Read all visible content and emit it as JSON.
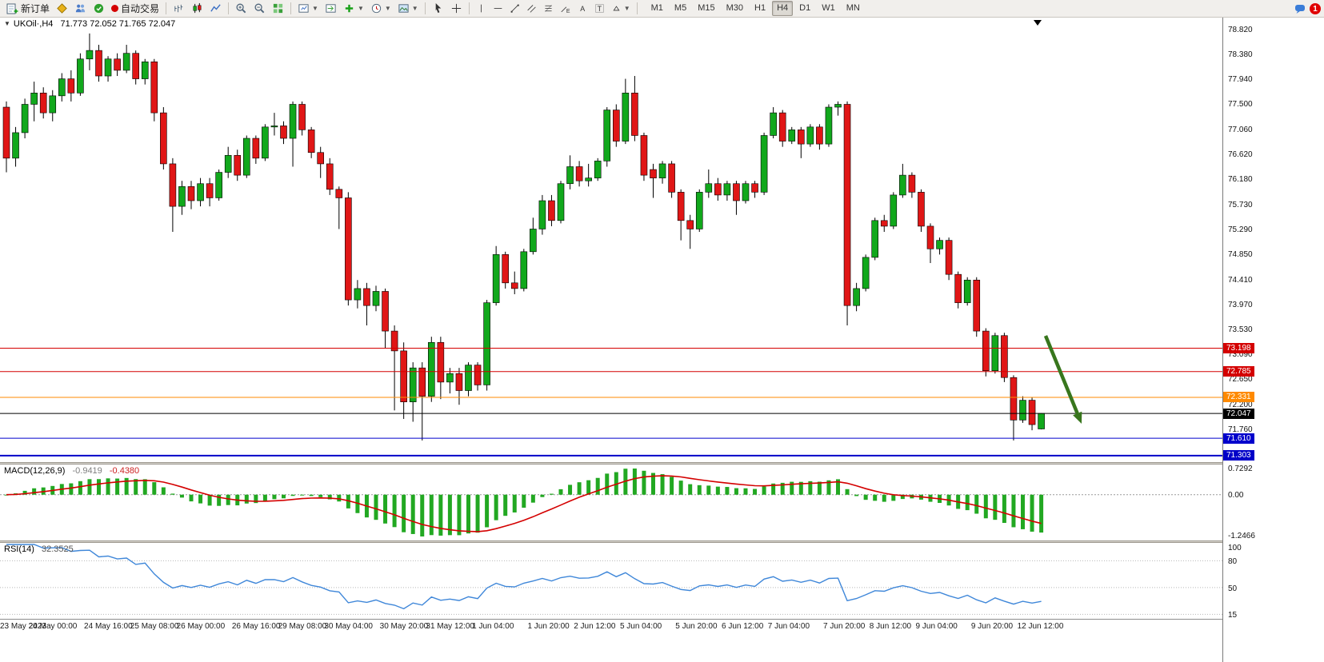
{
  "toolbar": {
    "new_order_label": "新订单",
    "autotrading_label": "自动交易",
    "notification_badge": "1",
    "timeframes": {
      "items": [
        "M1",
        "M5",
        "M15",
        "M30",
        "H1",
        "H4",
        "D1",
        "W1",
        "MN"
      ],
      "active": "H4"
    }
  },
  "chart": {
    "symbol_label": "UKOil·,H4",
    "ohlc_text": "71.773 72.052 71.765 72.047",
    "open": "71.773",
    "high": "72.052",
    "low": "71.765",
    "close": "72.047"
  },
  "price_axis": {
    "ticks": [
      "78.820",
      "78.380",
      "77.940",
      "77.500",
      "77.060",
      "76.620",
      "76.180",
      "75.730",
      "75.290",
      "74.850",
      "74.410",
      "73.970",
      "73.530",
      "73.090",
      "72.650",
      "72.200",
      "71.760"
    ]
  },
  "hlines": [
    {
      "price": 73.198,
      "label": "73.198",
      "color": "#d40000",
      "width": 1
    },
    {
      "price": 72.785,
      "label": "72.785",
      "color": "#d40000",
      "width": 1
    },
    {
      "price": 72.331,
      "label": "72.331",
      "color": "#ff8a00",
      "width": 1
    },
    {
      "price": 71.61,
      "label": "71.610",
      "color": "#0000cc",
      "width": 1
    },
    {
      "price": 71.303,
      "label": "71.303",
      "color": "#0000c8",
      "width": 2
    }
  ],
  "current_price": {
    "value": 72.047,
    "label": "72.047",
    "color": "#000000"
  },
  "macd": {
    "title_text": "MACD(12,26,9)",
    "value_main": "-0.9419",
    "value_signal": "-0.4380",
    "axis": [
      "0.7292",
      "0.00",
      "-1.2466"
    ],
    "histogram_color": "#22a822",
    "signal_color": "#d40000"
  },
  "rsi": {
    "title_text": "RSI(14)",
    "value": "32.3525",
    "axis": [
      "100",
      "80",
      "50",
      "15"
    ],
    "levels": [
      80,
      50,
      20
    ],
    "line_color": "#3f87d9"
  },
  "time_axis": {
    "labels": [
      "23 May 2023",
      "24 May 00:00",
      "24 May 16:00",
      "25 May 08:00",
      "26 May 00:00",
      "26 May 16:00",
      "29 May 08:00",
      "30 May 04:00",
      "30 May 20:00",
      "31 May 12:00",
      "1 Jun 04:00",
      "1 Jun 20:00",
      "2 Jun 12:00",
      "5 Jun 04:00",
      "5 Jun 20:00",
      "6 Jun 12:00",
      "7 Jun 04:00",
      "7 Jun 20:00",
      "8 Jun 12:00",
      "9 Jun 04:00",
      "9 Jun 20:00",
      "12 Jun 12:00"
    ]
  },
  "annotation": {
    "arrow_color": "#38761d"
  },
  "chart_data": {
    "type": "candlestick",
    "symbol": "UKOil",
    "timeframe": "H4",
    "up_color": "#11a81c",
    "down_color": "#e01616",
    "price_range": [
      71.19,
      79.03
    ],
    "candles": [
      [
        77.45,
        77.55,
        76.3,
        76.55
      ],
      [
        76.55,
        77.1,
        76.4,
        77.0
      ],
      [
        77.0,
        77.6,
        76.9,
        77.5
      ],
      [
        77.5,
        77.9,
        77.2,
        77.7
      ],
      [
        77.7,
        77.8,
        77.25,
        77.35
      ],
      [
        77.35,
        77.75,
        77.2,
        77.65
      ],
      [
        77.65,
        78.05,
        77.55,
        77.95
      ],
      [
        77.95,
        78.1,
        77.55,
        77.7
      ],
      [
        77.7,
        78.4,
        77.65,
        78.3
      ],
      [
        78.3,
        78.75,
        78.1,
        78.45
      ],
      [
        78.45,
        78.55,
        77.9,
        78.0
      ],
      [
        78.0,
        78.35,
        77.9,
        78.3
      ],
      [
        78.3,
        78.4,
        78.0,
        78.1
      ],
      [
        78.1,
        78.55,
        78.05,
        78.4
      ],
      [
        78.4,
        78.45,
        77.85,
        77.95
      ],
      [
        77.95,
        78.3,
        77.85,
        78.25
      ],
      [
        78.25,
        78.3,
        77.2,
        77.35
      ],
      [
        77.35,
        77.45,
        76.35,
        76.45
      ],
      [
        76.45,
        76.55,
        75.25,
        75.7
      ],
      [
        75.7,
        76.15,
        75.55,
        76.05
      ],
      [
        76.05,
        76.15,
        75.65,
        75.8
      ],
      [
        75.8,
        76.2,
        75.7,
        76.1
      ],
      [
        76.1,
        76.2,
        75.7,
        75.85
      ],
      [
        75.85,
        76.35,
        75.8,
        76.3
      ],
      [
        76.3,
        76.75,
        76.2,
        76.6
      ],
      [
        76.6,
        76.7,
        76.15,
        76.25
      ],
      [
        76.25,
        76.95,
        76.2,
        76.9
      ],
      [
        76.9,
        76.95,
        76.45,
        76.55
      ],
      [
        76.55,
        77.15,
        76.5,
        77.1
      ],
      [
        77.1,
        77.35,
        76.95,
        77.12
      ],
      [
        77.12,
        77.2,
        76.8,
        76.9
      ],
      [
        76.9,
        77.55,
        76.4,
        77.5
      ],
      [
        77.5,
        77.55,
        76.95,
        77.05
      ],
      [
        77.05,
        77.1,
        76.55,
        76.65
      ],
      [
        76.65,
        76.75,
        76.2,
        76.45
      ],
      [
        76.45,
        76.55,
        75.9,
        76.0
      ],
      [
        76.0,
        76.05,
        75.3,
        75.85
      ],
      [
        75.85,
        75.95,
        73.95,
        74.05
      ],
      [
        74.05,
        74.4,
        73.9,
        74.25
      ],
      [
        74.25,
        74.35,
        73.6,
        73.95
      ],
      [
        73.95,
        74.3,
        73.85,
        74.2
      ],
      [
        74.2,
        74.25,
        73.2,
        73.5
      ],
      [
        73.5,
        73.6,
        72.1,
        73.15
      ],
      [
        73.15,
        73.3,
        71.95,
        72.25
      ],
      [
        72.25,
        72.95,
        71.9,
        72.85
      ],
      [
        72.85,
        72.95,
        71.57,
        72.35
      ],
      [
        72.35,
        73.4,
        72.25,
        73.3
      ],
      [
        73.3,
        73.4,
        72.3,
        72.6
      ],
      [
        72.6,
        72.85,
        72.4,
        72.75
      ],
      [
        72.75,
        72.85,
        72.2,
        72.45
      ],
      [
        72.45,
        72.95,
        72.35,
        72.9
      ],
      [
        72.9,
        72.95,
        72.45,
        72.55
      ],
      [
        72.55,
        74.05,
        72.45,
        74.0
      ],
      [
        74.0,
        75.0,
        73.95,
        74.85
      ],
      [
        74.85,
        74.9,
        74.25,
        74.35
      ],
      [
        74.35,
        74.55,
        74.15,
        74.25
      ],
      [
        74.25,
        74.95,
        74.2,
        74.9
      ],
      [
        74.9,
        75.5,
        74.85,
        75.3
      ],
      [
        75.3,
        75.9,
        75.2,
        75.8
      ],
      [
        75.8,
        75.9,
        75.35,
        75.45
      ],
      [
        75.45,
        76.15,
        75.4,
        76.1
      ],
      [
        76.1,
        76.6,
        76.0,
        76.4
      ],
      [
        76.4,
        76.5,
        76.05,
        76.15
      ],
      [
        76.15,
        76.45,
        76.05,
        76.2
      ],
      [
        76.2,
        76.55,
        76.15,
        76.5
      ],
      [
        76.5,
        77.45,
        76.4,
        77.4
      ],
      [
        77.4,
        77.5,
        76.75,
        76.85
      ],
      [
        76.85,
        77.95,
        76.8,
        77.7
      ],
      [
        77.7,
        78.0,
        76.85,
        76.95
      ],
      [
        76.95,
        77.0,
        76.15,
        76.25
      ],
      [
        76.35,
        76.45,
        75.85,
        76.2
      ],
      [
        76.2,
        76.5,
        76.1,
        76.45
      ],
      [
        76.45,
        76.5,
        75.85,
        75.95
      ],
      [
        75.95,
        76.0,
        75.1,
        75.45
      ],
      [
        75.45,
        75.55,
        74.95,
        75.3
      ],
      [
        75.3,
        76.0,
        75.25,
        75.95
      ],
      [
        75.95,
        76.35,
        75.85,
        76.1
      ],
      [
        76.1,
        76.2,
        75.8,
        75.9
      ],
      [
        75.9,
        76.15,
        75.8,
        76.1
      ],
      [
        76.1,
        76.15,
        75.55,
        75.8
      ],
      [
        75.8,
        76.15,
        75.75,
        76.1
      ],
      [
        76.1,
        76.15,
        75.85,
        75.95
      ],
      [
        75.95,
        77.0,
        75.9,
        76.95
      ],
      [
        76.95,
        77.45,
        76.9,
        77.35
      ],
      [
        77.35,
        77.4,
        76.75,
        76.85
      ],
      [
        76.85,
        77.1,
        76.8,
        77.05
      ],
      [
        77.05,
        77.1,
        76.55,
        76.8
      ],
      [
        76.8,
        77.15,
        76.75,
        77.1
      ],
      [
        77.1,
        77.15,
        76.7,
        76.8
      ],
      [
        76.8,
        77.5,
        76.75,
        77.45
      ],
      [
        77.45,
        77.55,
        77.3,
        77.5
      ],
      [
        77.5,
        77.55,
        73.6,
        73.95
      ],
      [
        73.95,
        74.35,
        73.85,
        74.25
      ],
      [
        74.25,
        74.85,
        74.2,
        74.8
      ],
      [
        74.8,
        75.5,
        74.75,
        75.45
      ],
      [
        75.45,
        75.55,
        75.25,
        75.35
      ],
      [
        75.35,
        75.95,
        75.3,
        75.9
      ],
      [
        75.9,
        76.45,
        75.85,
        76.25
      ],
      [
        76.25,
        76.3,
        75.85,
        75.95
      ],
      [
        75.95,
        76.0,
        75.25,
        75.35
      ],
      [
        75.35,
        75.4,
        74.7,
        74.95
      ],
      [
        74.95,
        75.15,
        74.85,
        75.1
      ],
      [
        75.1,
        75.15,
        74.4,
        74.5
      ],
      [
        74.5,
        74.55,
        73.9,
        74.0
      ],
      [
        74.0,
        74.45,
        73.95,
        74.4
      ],
      [
        74.4,
        74.45,
        73.4,
        73.5
      ],
      [
        73.5,
        73.55,
        72.7,
        72.8
      ],
      [
        72.8,
        73.47,
        72.75,
        73.42
      ],
      [
        73.42,
        73.47,
        72.6,
        72.68
      ],
      [
        72.68,
        72.72,
        71.57,
        71.93
      ],
      [
        71.93,
        72.35,
        71.88,
        72.28
      ],
      [
        72.28,
        72.33,
        71.75,
        71.85
      ],
      [
        71.773,
        72.052,
        71.765,
        72.047
      ]
    ]
  }
}
